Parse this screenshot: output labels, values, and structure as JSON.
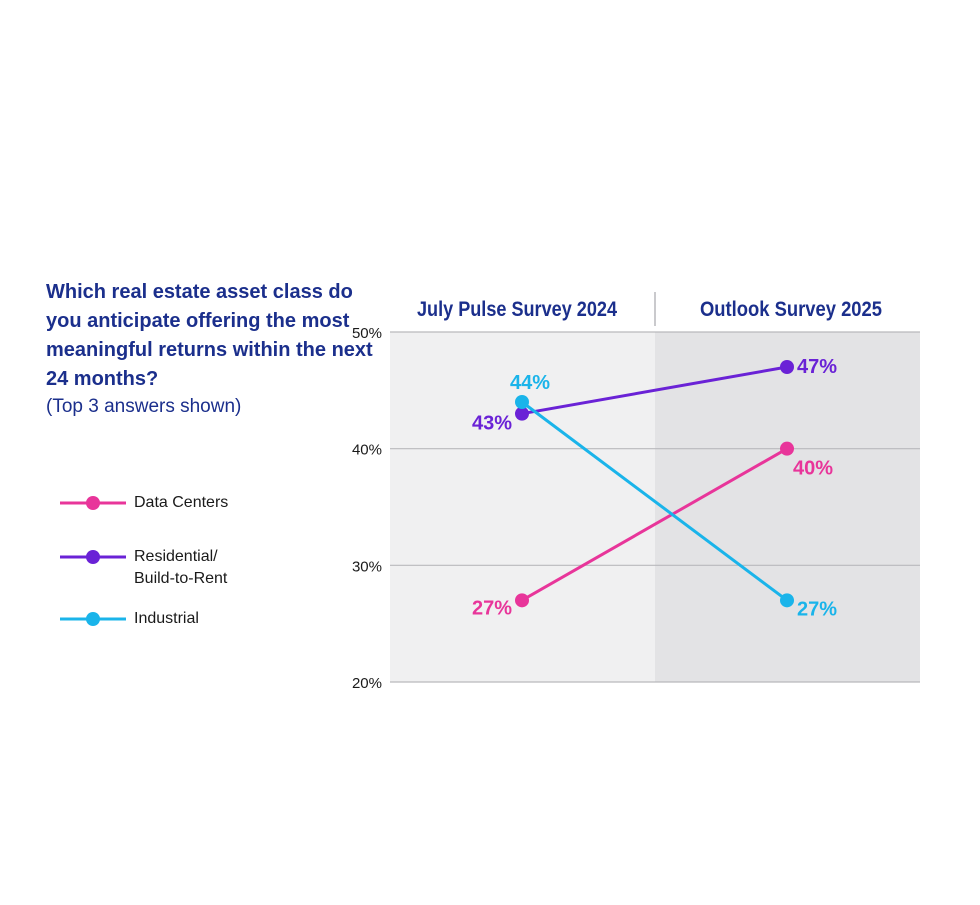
{
  "title": "Which real estate asset class do you anticipate offering the most meaningful returns within the next 24 months?",
  "subtitle": "(Top 3 answers shown)",
  "legend": {
    "items": [
      {
        "label": "Data Centers"
      },
      {
        "label": "Residential/ Build-to-Rent"
      },
      {
        "label": "Industrial"
      }
    ]
  },
  "chart_data": {
    "type": "line",
    "categories": [
      "July Pulse Survey 2024",
      "Outlook Survey 2025"
    ],
    "ylim": [
      20,
      50
    ],
    "yticks": [
      20,
      30,
      40,
      50
    ],
    "ytick_labels": [
      "20%",
      "30%",
      "40%",
      "50%"
    ],
    "grid": true,
    "legend_position": "left",
    "series": [
      {
        "name": "Data Centers",
        "color": "#e8359a",
        "values": [
          27,
          40
        ],
        "labels": [
          "27%",
          "40%"
        ]
      },
      {
        "name": "Residential/ Build-to-Rent",
        "color": "#6a22d6",
        "values": [
          43,
          47
        ],
        "labels": [
          "43%",
          "47%"
        ]
      },
      {
        "name": "Industrial",
        "color": "#1ab4ea",
        "values": [
          44,
          27
        ],
        "labels": [
          "44%",
          "27%"
        ]
      }
    ]
  }
}
